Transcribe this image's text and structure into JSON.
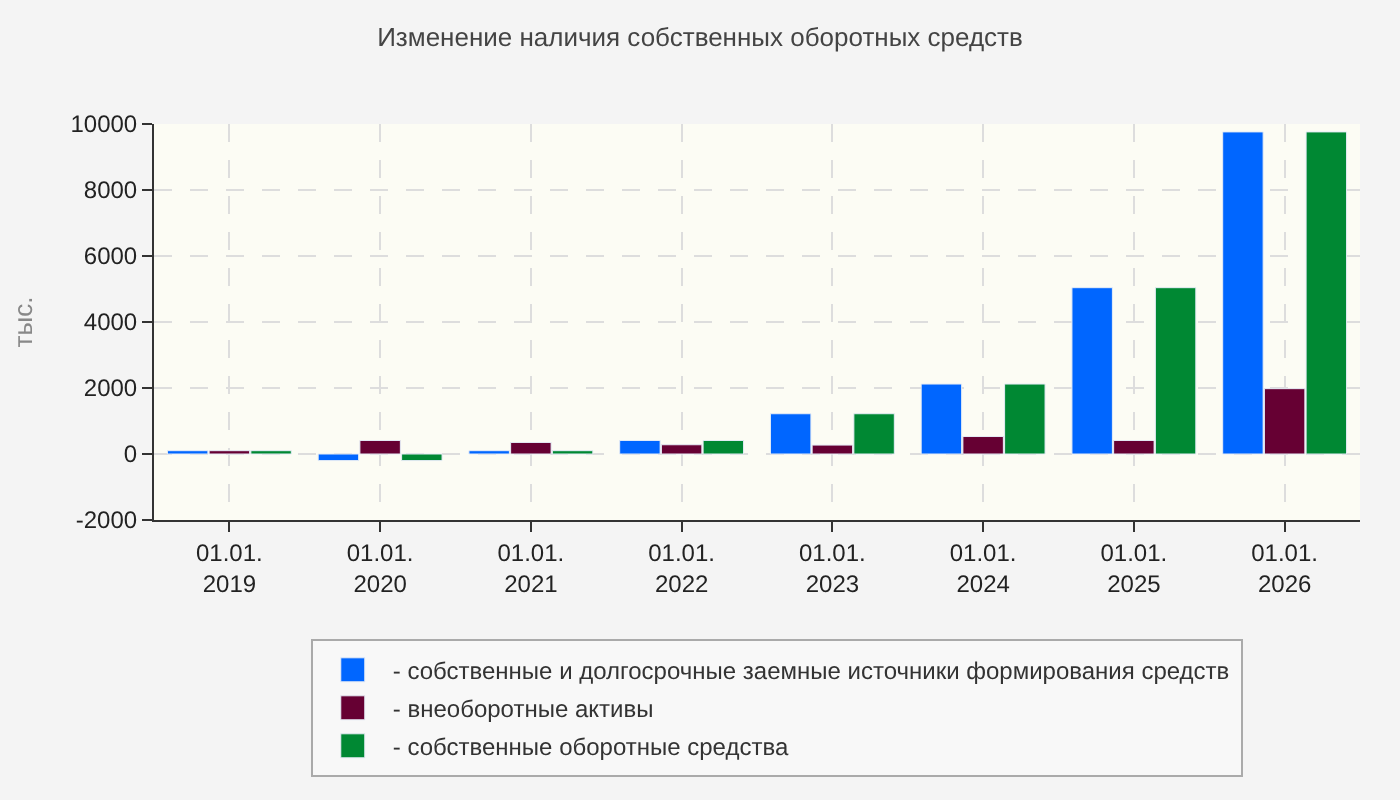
{
  "chart_data": {
    "type": "bar",
    "title": "Изменение наличия собственных оборотных средств",
    "ylabel": "тыс.",
    "categories": [
      "01.01.\n2019",
      "01.01.\n2020",
      "01.01.\n2021",
      "01.01.\n2022",
      "01.01.\n2023",
      "01.01.\n2024",
      "01.01.\n2025",
      "01.01.\n2026"
    ],
    "series": [
      {
        "name": "- собственные и долгосрочные заемные источники формирования средств",
        "color": "#0066ff",
        "values": [
          100,
          -200,
          100,
          410,
          1220,
          2120,
          5040,
          9760
        ]
      },
      {
        "name": "- внеоборотные активы",
        "color": "#660033",
        "values": [
          100,
          410,
          350,
          280,
          270,
          530,
          410,
          1980
        ]
      },
      {
        "name": "- собственные оборотные средства",
        "color": "#008833",
        "values": [
          100,
          -200,
          100,
          410,
          1220,
          2120,
          5040,
          9760
        ]
      }
    ],
    "ylim": [
      -2000,
      10000
    ],
    "yticks": [
      -2000,
      0,
      2000,
      4000,
      6000,
      8000,
      10000
    ],
    "grid": true,
    "legend": "bottom"
  }
}
